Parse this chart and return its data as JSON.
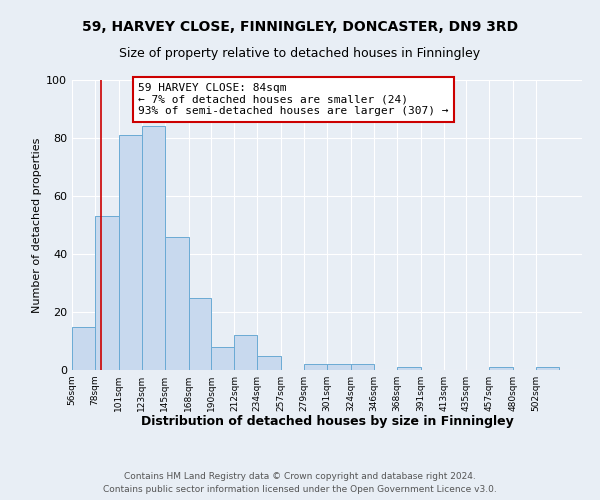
{
  "title": "59, HARVEY CLOSE, FINNINGLEY, DONCASTER, DN9 3RD",
  "subtitle": "Size of property relative to detached houses in Finningley",
  "xlabel": "Distribution of detached houses by size in Finningley",
  "ylabel": "Number of detached properties",
  "bar_values": [
    15,
    53,
    81,
    84,
    46,
    25,
    8,
    12,
    5,
    0,
    2,
    2,
    2,
    0,
    1,
    0,
    0,
    0,
    1,
    0,
    1
  ],
  "bin_labels": [
    "56sqm",
    "78sqm",
    "101sqm",
    "123sqm",
    "145sqm",
    "168sqm",
    "190sqm",
    "212sqm",
    "234sqm",
    "257sqm",
    "279sqm",
    "301sqm",
    "324sqm",
    "346sqm",
    "368sqm",
    "391sqm",
    "413sqm",
    "435sqm",
    "457sqm",
    "480sqm",
    "502sqm"
  ],
  "bin_edges": [
    56,
    78,
    101,
    123,
    145,
    168,
    190,
    212,
    234,
    257,
    279,
    301,
    324,
    346,
    368,
    391,
    413,
    435,
    457,
    480,
    502,
    524
  ],
  "bar_color": "#c8d9ee",
  "bar_edge_color": "#6aaad4",
  "property_line_x": 84,
  "property_line_color": "#cc0000",
  "annotation_text": "59 HARVEY CLOSE: 84sqm\n← 7% of detached houses are smaller (24)\n93% of semi-detached houses are larger (307) →",
  "annotation_box_color": "#ffffff",
  "annotation_box_edge_color": "#cc0000",
  "ylim": [
    0,
    100
  ],
  "yticks": [
    0,
    20,
    40,
    60,
    80,
    100
  ],
  "background_color": "#e8eef5",
  "grid_color": "#ffffff",
  "footer_line1": "Contains HM Land Registry data © Crown copyright and database right 2024.",
  "footer_line2": "Contains public sector information licensed under the Open Government Licence v3.0.",
  "title_fontsize": 10,
  "subtitle_fontsize": 9,
  "annotation_fontsize": 8,
  "footer_fontsize": 6.5,
  "xlabel_fontsize": 9,
  "ylabel_fontsize": 8,
  "ytick_fontsize": 8,
  "xtick_fontsize": 6.5
}
